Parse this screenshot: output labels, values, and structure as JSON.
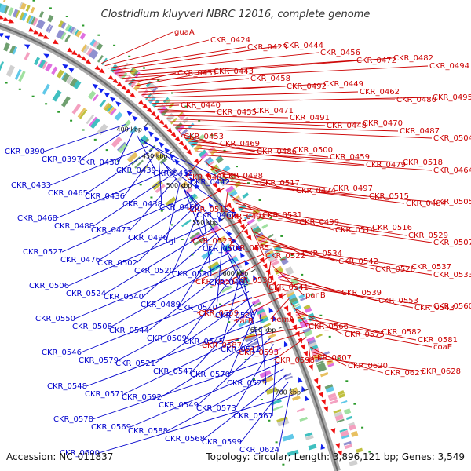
{
  "title": "Clostridium kluyveri NBRC 12016, complete genome",
  "footer": {
    "accession": "Accession: NC_011837",
    "summary": "Topology: circular; Length: 3,896,121 bp; Genes: 3,549"
  },
  "colors": {
    "forward_label": "#cc0000",
    "reverse_label": "#0000cc",
    "forward_gene": "#ee1111",
    "reverse_gene": "#1122ee",
    "backbone": "#888888"
  },
  "ticks": [
    "400 kbp",
    "450 kbp",
    "500 kbp",
    "550 kbp",
    "600 kbp",
    "650 kbp",
    "700 kbp"
  ],
  "forward_labels": [
    "guaA",
    "CKR_0424",
    "CKR_0423",
    "CKR_0444",
    "CKR_0456",
    "CKR_0472",
    "CKR_0482",
    "CKR_0494",
    "CKR_0431",
    "CKR_0443",
    "CKR_0458",
    "CKR_0492",
    "CKR_0449",
    "CKR_0462",
    "CKR_0480",
    "CKR_0495",
    "CKR_0440",
    "CKR_0455",
    "CKR_0471",
    "CKR_0491",
    "CKR_0448",
    "CKR_0470",
    "CKR_0487",
    "CKR_0504",
    "CKR_0453",
    "CKR_0469",
    "CKR_0486",
    "CKR_0500",
    "CKR_0459",
    "CKR_0479",
    "CKR_0518",
    "CKR_0464",
    "CKR_0485",
    "CKR_0498",
    "CKR_0517",
    "CKR_0474",
    "CKR_0497",
    "CKR_0515",
    "CKR_0484",
    "CKR_0505",
    "CKR_0519",
    "CKR_0493",
    "CKR_0531",
    "CKR_0499",
    "CKR_0514",
    "CKR_0516",
    "CKR_0529",
    "CKR_0507",
    "CKR_0523",
    "CKR_0535",
    "CKR_0522",
    "CKR_0534",
    "CKR_0542",
    "CKR_0528",
    "CKR_0537",
    "CKR_0533",
    "CKR_0551",
    "CKR_0536",
    "CKR_0541",
    "panB",
    "CKR_0539",
    "CKR_0553",
    "CKR_0543",
    "CKR_0560",
    "CKR_0559",
    "carB",
    "hemA",
    "CKR_0566",
    "CKR_0575",
    "CKR_0582",
    "CKR_0581",
    "coaE",
    "CKR_0587",
    "CKR_0593",
    "CKR_0598",
    "CKR_0607",
    "CKR_0620",
    "CKR_0627",
    "CKR_0628"
  ],
  "reverse_labels": [
    "CKR_0390",
    "CKR_0397",
    "CKR_0430",
    "CKR_0439",
    "CKR_0432",
    "CKR_0442",
    "CKR_0433",
    "CKR_0465",
    "CKR_0436",
    "CKR_0438",
    "CKR_0466",
    "CKR_0467",
    "CKR_0468",
    "CKR_0488",
    "CKR_0473",
    "CKR_0496",
    "tgl",
    "CKR_0501",
    "CKR_0527",
    "CKR_0476",
    "CKR_0502",
    "CKR_0520",
    "CKR_0530",
    "CKR_0481",
    "CKR_0506",
    "CKR_0524",
    "CKR_0540",
    "CKR_0489",
    "CKR_0510",
    "CKR_0526",
    "CKR_0550",
    "CKR_0508",
    "CKR_0544",
    "CKR_0509",
    "CKR_0545",
    "CKR_0511",
    "CKR_0546",
    "CKR_0579",
    "CKR_0521",
    "CKR_0547",
    "CKR_0570",
    "CKR_0525",
    "CKR_0548",
    "CKR_0571",
    "CKR_0592",
    "CKR_0549",
    "CKR_0573",
    "CKR_0567",
    "CKR_0578",
    "CKR_0569",
    "CKR_0588",
    "CKR_0568",
    "CKR_0599",
    "CKR_0624",
    "CKR_0600"
  ]
}
